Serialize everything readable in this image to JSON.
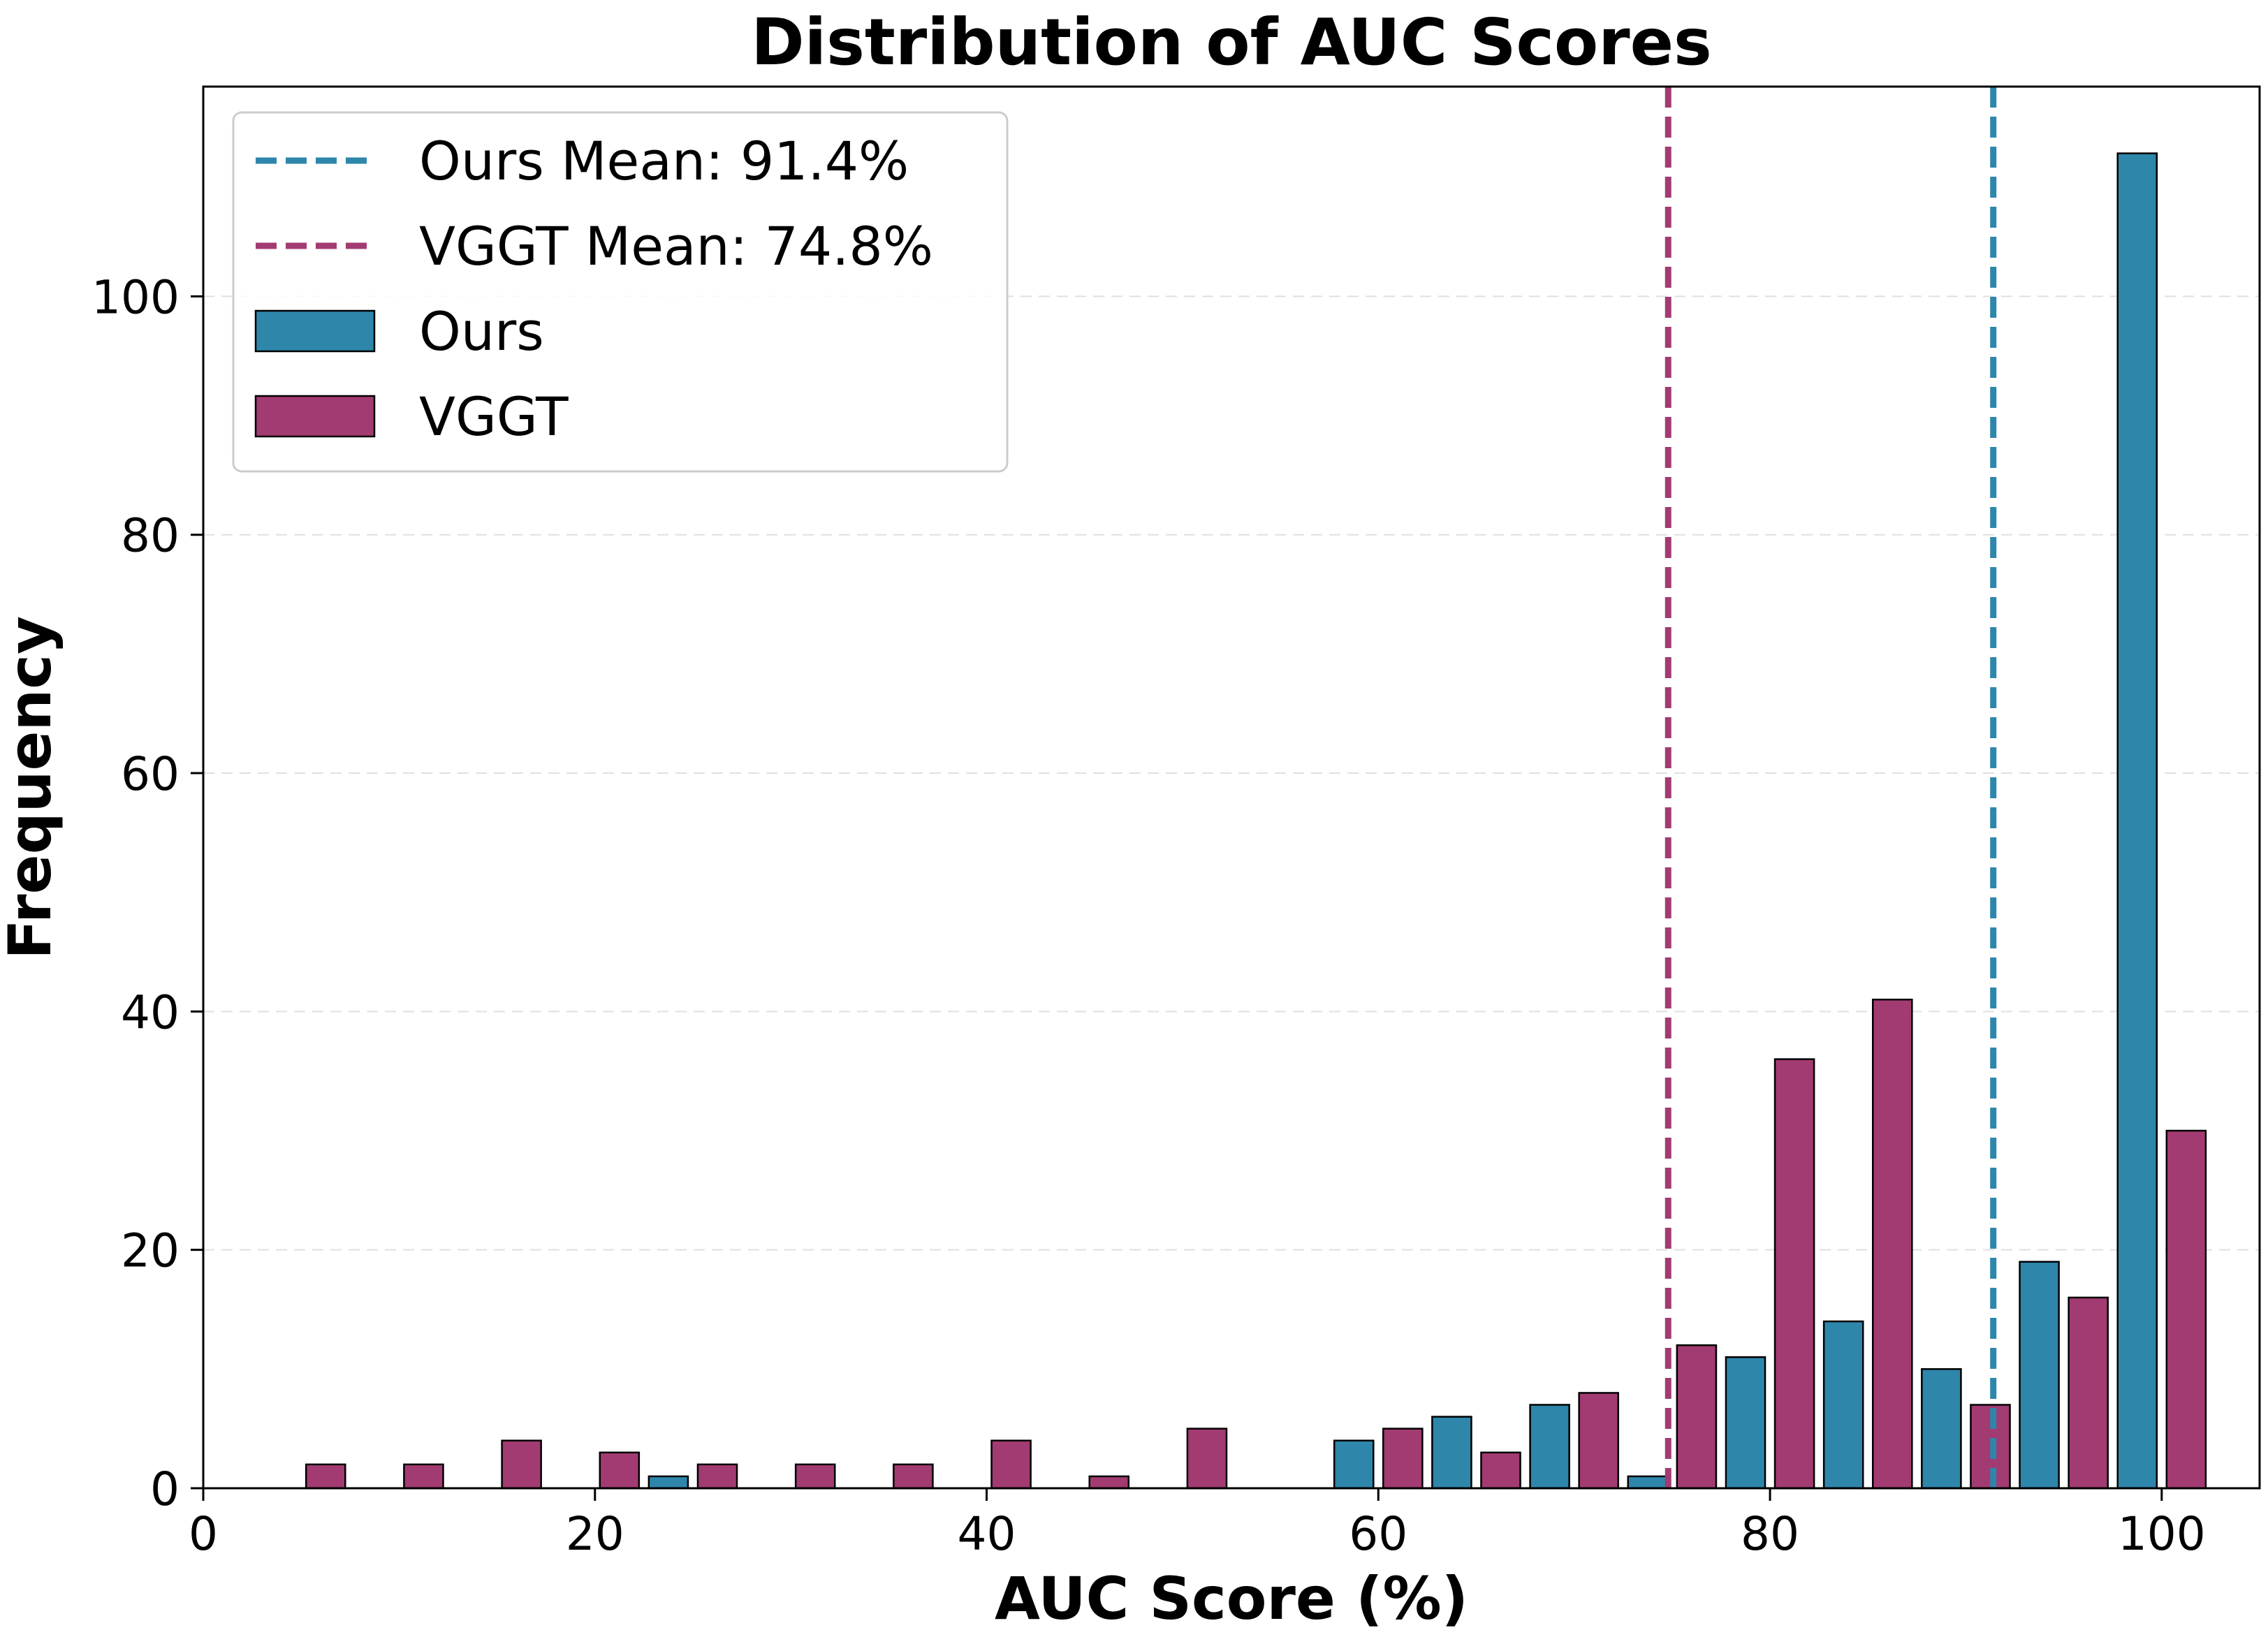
{
  "chart_data": {
    "type": "bar",
    "title": "Distribution of AUC Scores",
    "xlabel": "AUC Score (%)",
    "ylabel": "Frequency",
    "xlim": [
      0,
      105
    ],
    "ylim": [
      0,
      117.6
    ],
    "xticks": [
      0,
      20,
      40,
      60,
      80,
      100
    ],
    "yticks": [
      0,
      20,
      40,
      60,
      80,
      100
    ],
    "grid": "y-dashed",
    "legend_position": "top-left",
    "bin_centers": [
      5,
      10,
      15,
      20,
      25,
      30,
      35,
      40,
      45,
      50,
      55,
      60,
      65,
      70,
      75,
      80,
      85,
      90,
      95,
      100
    ],
    "series": [
      {
        "name": "Ours",
        "color": "#2E86AB",
        "values": [
          0,
          0,
          0,
          0,
          1,
          0,
          0,
          0,
          0,
          0,
          0,
          4,
          6,
          7,
          1,
          11,
          14,
          10,
          19,
          112
        ]
      },
      {
        "name": "VGGT",
        "color": "#A23B72",
        "values": [
          2,
          2,
          4,
          3,
          2,
          2,
          2,
          4,
          1,
          5,
          0,
          5,
          3,
          8,
          12,
          36,
          41,
          7,
          16,
          30
        ]
      }
    ],
    "mean_lines": [
      {
        "label": "Ours Mean: 91.4%",
        "value": 91.4,
        "color": "#2E86AB"
      },
      {
        "label": "VGGT Mean: 74.8%",
        "value": 74.8,
        "color": "#A23B72"
      }
    ]
  }
}
